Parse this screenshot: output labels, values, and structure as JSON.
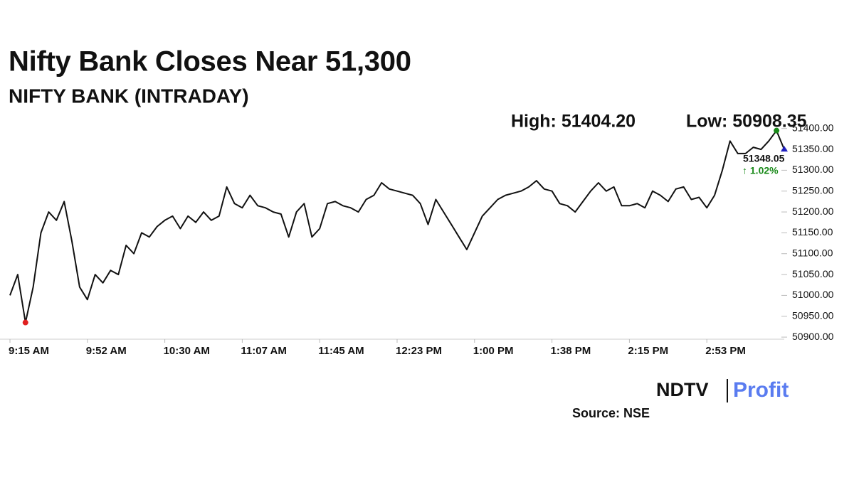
{
  "chart_data": {
    "type": "line",
    "title": "Nifty Bank Closes Near 51,300",
    "subtitle": "NIFTY BANK (INTRADAY)",
    "annotations": {
      "high": "High: 51404.20",
      "low": "Low: 50908.35",
      "close": "51348.05",
      "change": "↑ 1.02%"
    },
    "categories": [
      "9:15 AM",
      null,
      null,
      null,
      null,
      null,
      null,
      null,
      null,
      null,
      "9:52 AM",
      null,
      null,
      null,
      null,
      null,
      null,
      null,
      null,
      null,
      "10:30 AM",
      null,
      null,
      null,
      null,
      null,
      null,
      null,
      null,
      null,
      "11:07 AM",
      null,
      null,
      null,
      null,
      null,
      null,
      null,
      null,
      null,
      "11:45 AM",
      null,
      null,
      null,
      null,
      null,
      null,
      null,
      null,
      null,
      "12:23 PM",
      null,
      null,
      null,
      null,
      null,
      null,
      null,
      null,
      null,
      "1:00 PM",
      null,
      null,
      null,
      null,
      null,
      null,
      null,
      null,
      null,
      "1:38 PM",
      null,
      null,
      null,
      null,
      null,
      null,
      null,
      null,
      null,
      "2:15 PM",
      null,
      null,
      null,
      null,
      null,
      null,
      null,
      null,
      null,
      "2:53 PM",
      null,
      null,
      null,
      null,
      null,
      null,
      null,
      null,
      null,
      null
    ],
    "series": [
      {
        "name": "NIFTY BANK",
        "color": "#111111",
        "values": [
          51000,
          51050,
          50935,
          51020,
          51150,
          51200,
          51180,
          51225,
          51130,
          51020,
          50990,
          51050,
          51030,
          51060,
          51050,
          51120,
          51100,
          51150,
          51140,
          51165,
          51180,
          51190,
          51160,
          51190,
          51175,
          51200,
          51180,
          51190,
          51260,
          51220,
          51210,
          51240,
          51215,
          51210,
          51200,
          51195,
          51140,
          51200,
          51220,
          51140,
          51160,
          51220,
          51225,
          51215,
          51210,
          51200,
          51230,
          51240,
          51270,
          51255,
          51250,
          51245,
          51240,
          51220,
          51170,
          51230,
          51200,
          51170,
          51140,
          51110,
          51150,
          51190,
          51210,
          51230,
          51240,
          51245,
          51250,
          51260,
          51275,
          51255,
          51250,
          51220,
          51215,
          51200,
          51225,
          51250,
          51270,
          51250,
          51260,
          51215,
          51215,
          51220,
          51210,
          51250,
          51240,
          51225,
          51255,
          51260,
          51230,
          51235,
          51210,
          51240,
          51300,
          51370,
          51340,
          51340,
          51355,
          51350,
          51370,
          51395,
          51350
        ]
      }
    ],
    "markers": {
      "low": "#e02020",
      "high": "#1a8a1a",
      "close": "#2020c0"
    },
    "change_color": "#1a8a1a",
    "ylim": [
      50895,
      51420
    ],
    "yticks": [
      {
        "value": 50900,
        "label": "50900.00"
      },
      {
        "value": 50950,
        "label": "50950.00"
      },
      {
        "value": 51000,
        "label": "51000.00"
      },
      {
        "value": 51050,
        "label": "51050.00"
      },
      {
        "value": 51100,
        "label": "51100.00"
      },
      {
        "value": 51150,
        "label": "51150.00"
      },
      {
        "value": 51200,
        "label": "51200.00"
      },
      {
        "value": 51250,
        "label": "51250.00"
      },
      {
        "value": 51300,
        "label": "51300.00"
      },
      {
        "value": 51350,
        "label": "51350.00"
      },
      {
        "value": 51400,
        "label": "51400.00"
      }
    ],
    "grid": false
  },
  "brand": {
    "left": "NDTV",
    "right": "Profit"
  },
  "source": "Source: NSE"
}
